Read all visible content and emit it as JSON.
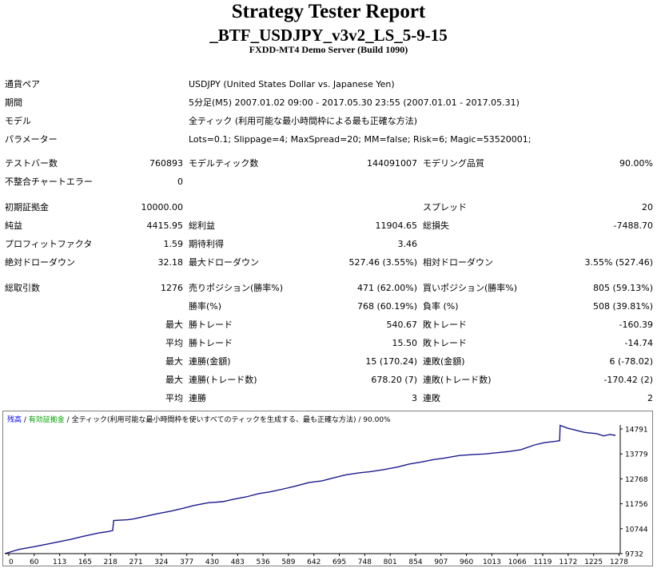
{
  "report": {
    "title": "Strategy Tester Report",
    "subtitle": "_BTF_USDJPY_v3v2_LS_5-9-15",
    "server": "FXDD-MT4 Demo Server (Build 1090)"
  },
  "info": {
    "symbol_label": "通貨ペア",
    "symbol_value": "USDJPY (United States Dollar vs. Japanese Yen)",
    "period_label": "期間",
    "period_value": "5分足(M5) 2007.01.02 09:00 - 2017.05.30 23:55 (2007.01.01 - 2017.05.31)",
    "model_label": "モデル",
    "model_value": "全ティック (利用可能な最小時間枠による最も正確な方法)",
    "params_label": "パラメーター",
    "params_value": "Lots=0.1; Slippage=4; MaxSpread=20; MM=false; Risk=6; Magic=53520001;"
  },
  "stats": {
    "bars_label": "テストバー数",
    "bars_value": "760893",
    "ticks_label": "モデルティック数",
    "ticks_value": "144091007",
    "quality_label": "モデリング品質",
    "quality_value": "90.00%",
    "mismatch_label": "不整合チャートエラー",
    "mismatch_value": "0",
    "deposit_label": "初期証拠金",
    "deposit_value": "10000.00",
    "spread_label": "スプレッド",
    "spread_value": "20",
    "net_label": "純益",
    "net_value": "4415.95",
    "gross_profit_label": "総利益",
    "gross_profit_value": "11904.65",
    "gross_loss_label": "総損失",
    "gross_loss_value": "-7488.70",
    "pf_label": "プロフィットファクタ",
    "pf_value": "1.59",
    "expected_label": "期待利得",
    "expected_value": "3.46",
    "abs_dd_label": "絶対ドローダウン",
    "abs_dd_value": "32.18",
    "max_dd_label": "最大ドローダウン",
    "max_dd_value": "527.46 (3.55%)",
    "rel_dd_label": "相対ドローダウン",
    "rel_dd_value": "3.55% (527.46)",
    "total_trades_label": "総取引数",
    "total_trades_value": "1276",
    "short_label": "売りポジション(勝率%)",
    "short_value": "471 (62.00%)",
    "long_label": "買いポジション(勝率%)",
    "long_value": "805 (59.13%)",
    "win_label": "勝率(%)",
    "win_value": "768 (60.19%)",
    "loss_label": "負率 (%)",
    "loss_value": "508 (39.81%)",
    "max_label": "最大",
    "avg_label": "平均",
    "win_trade_label": "勝トレード",
    "loss_trade_label": "敗トレード",
    "largest_win": "540.67",
    "largest_loss": "-160.39",
    "avg_win": "15.50",
    "avg_loss": "-14.74",
    "cons_wins_money_label": "連勝(金額)",
    "cons_wins_money_value": "15 (170.24)",
    "cons_losses_money_label": "連敗(金額)",
    "cons_losses_money_value": "6 (-78.02)",
    "cons_wins_trades_label": "連勝(トレード数)",
    "cons_wins_trades_value": "678.20 (7)",
    "cons_losses_trades_label": "連敗(トレード数)",
    "cons_losses_trades_value": "-170.42 (2)",
    "avg_cons_wins_label": "連勝",
    "avg_cons_wins_value": "3",
    "avg_cons_losses_label": "連敗",
    "avg_cons_losses_value": "2"
  },
  "chart_legend": {
    "balance": "残高",
    "sep1": " / ",
    "equity": "有効証拠金",
    "sep2": " / ",
    "model": "全ティック(利用可能な最小時間枠を使いすべてのティックを生成する、最も正確な方法)",
    "sep3": " / ",
    "quality": "90.00%"
  },
  "colors": {
    "balance": "#1a1a8c",
    "equity": "#00a000",
    "legend_blue": "#0000ff"
  },
  "chart_data": {
    "type": "line",
    "x_ticks": [
      "0",
      "60",
      "113",
      "165",
      "218",
      "271",
      "324",
      "377",
      "430",
      "483",
      "536",
      "589",
      "642",
      "695",
      "748",
      "801",
      "854",
      "907",
      "960",
      "1013",
      "1066",
      "1119",
      "1172",
      "1225",
      "1278"
    ],
    "y_ticks": [
      "14791",
      "13779",
      "12768",
      "11756",
      "10744",
      "9732"
    ],
    "ylim": [
      9732,
      14791
    ],
    "xlim": [
      0,
      1300
    ],
    "series": [
      {
        "values_x": [
          0,
          30,
          60,
          90,
          113,
          140,
          165,
          200,
          218,
          228,
          230,
          260,
          271,
          300,
          324,
          350,
          377,
          400,
          430,
          460,
          483,
          510,
          536,
          560,
          589,
          610,
          642,
          670,
          695,
          720,
          748,
          770,
          801,
          830,
          854,
          880,
          907,
          930,
          960,
          990,
          1013,
          1040,
          1066,
          1090,
          1119,
          1140,
          1165,
          1172,
          1173,
          1190,
          1210,
          1225,
          1250,
          1265,
          1278,
          1290
        ],
        "values_y": [
          9732,
          9900,
          10000,
          10110,
          10200,
          10300,
          10420,
          10560,
          10610,
          10650,
          11050,
          11080,
          11110,
          11230,
          11330,
          11420,
          11540,
          11650,
          11760,
          11800,
          11900,
          11990,
          12120,
          12190,
          12310,
          12400,
          12560,
          12630,
          12750,
          12870,
          12950,
          12990,
          13080,
          13180,
          13300,
          13380,
          13480,
          13540,
          13640,
          13680,
          13700,
          13750,
          13800,
          13870,
          14060,
          14150,
          14210,
          14230,
          14840,
          14720,
          14630,
          14560,
          14510,
          14420,
          14480,
          14440
        ]
      }
    ]
  }
}
